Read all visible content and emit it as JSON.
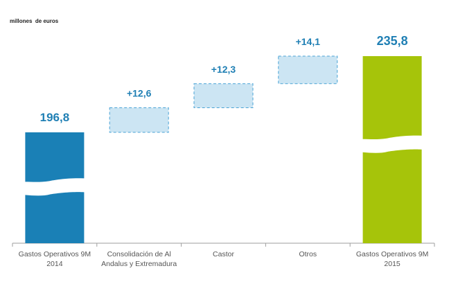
{
  "chart_data": {
    "type": "waterfall",
    "unit_label": "millones  de euros",
    "categories": [
      [
        "Gastos Operativos 9M",
        "2014"
      ],
      [
        "Consolidación de Al",
        "Andalus y Extremadura"
      ],
      [
        "Castor",
        ""
      ],
      [
        "Otros",
        ""
      ],
      [
        "Gastos Operativos 9M",
        "2015"
      ]
    ],
    "items": [
      {
        "kind": "total",
        "value": 196.8,
        "label": "196,8"
      },
      {
        "kind": "delta",
        "value": 12.6,
        "label": "+12,6"
      },
      {
        "kind": "delta",
        "value": 12.3,
        "label": "+12,3"
      },
      {
        "kind": "delta",
        "value": 14.1,
        "label": "+14,1"
      },
      {
        "kind": "total",
        "value": 235.8,
        "label": "235,8"
      }
    ],
    "axis_break": true,
    "colors": {
      "start_total": "#1a80b6",
      "end_total": "#a6c40a",
      "delta_fill": "#cce5f3",
      "delta_border": "#4aa3d6",
      "value_text": "#1f7fb4",
      "axis": "#9e9e9e"
    }
  }
}
